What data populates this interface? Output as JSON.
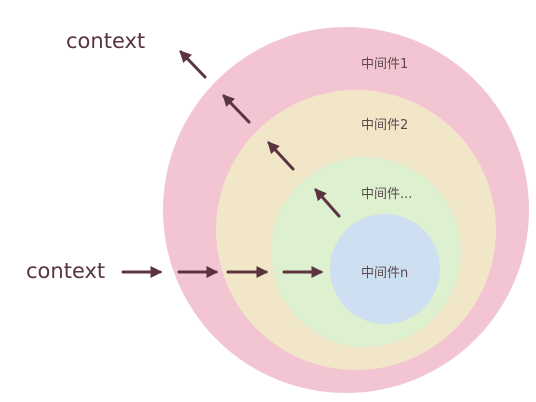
{
  "diagram": {
    "input_label": "context",
    "output_label": "context",
    "layers": [
      {
        "label": "中间件1",
        "color": "#f3c5d2"
      },
      {
        "label": "中间件2",
        "color": "#f2e6c9"
      },
      {
        "label": "中间件...",
        "color": "#ddf0cf"
      },
      {
        "label": "中间件n",
        "color": "#cddff0"
      }
    ],
    "arrow_color": "#5a3540"
  }
}
